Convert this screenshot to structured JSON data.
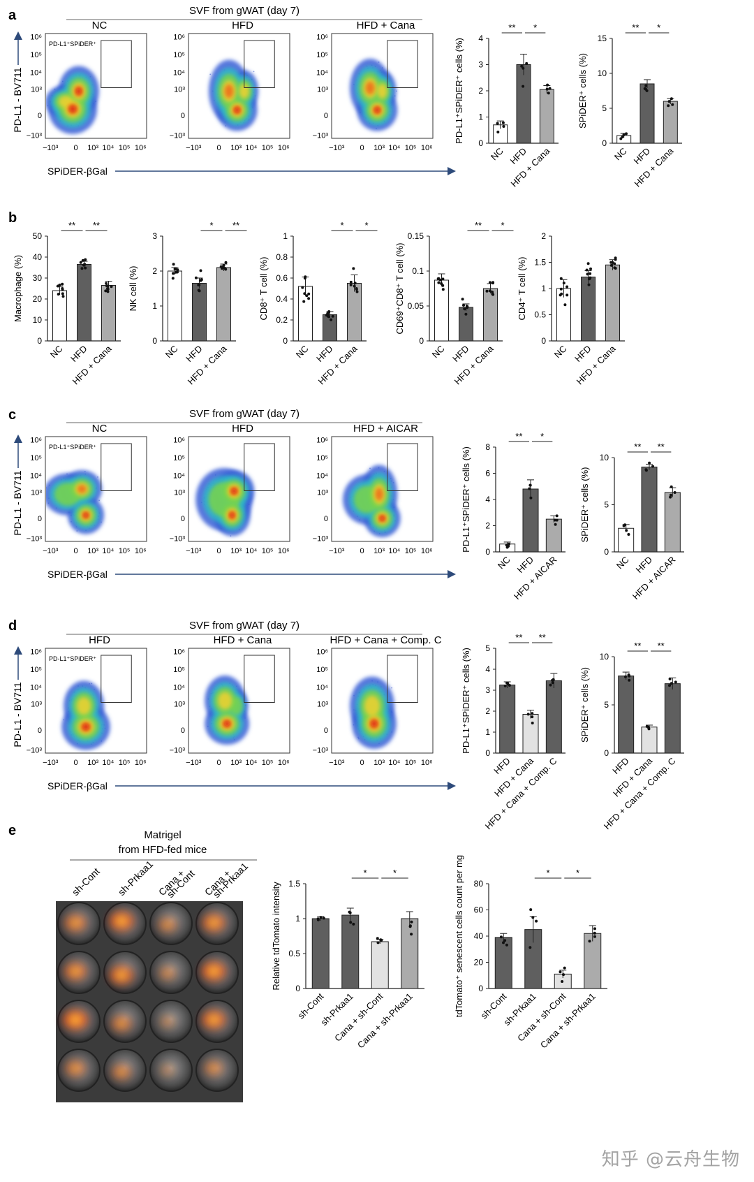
{
  "figure": {
    "panels": {
      "a": {
        "letter": "a",
        "header": "SVF from gWAT (day 7)",
        "groups": [
          "NC",
          "HFD",
          "HFD + Cana"
        ]
      },
      "b": {
        "letter": "b"
      },
      "c": {
        "letter": "c",
        "header": "SVF from gWAT (day 7)",
        "groups": [
          "NC",
          "HFD",
          "HFD + AICAR"
        ]
      },
      "d": {
        "letter": "d",
        "header": "SVF from gWAT (day 7)",
        "groups": [
          "HFD",
          "HFD + Cana",
          "HFD + Cana + Comp. C"
        ]
      },
      "e": {
        "letter": "e",
        "matrigel_line1": "Matrigel",
        "matrigel_line2": "from  HFD-fed mice",
        "wells": [
          "sh-Cont",
          "sh-Prkaa1",
          "Cana + sh-Cont",
          "Cana + sh-Prkaa1"
        ]
      }
    },
    "flow": {
      "y_axis_label": "PD-L1 - BV711",
      "x_axis_label": "SPiDER-βGal",
      "gate_label": "PD-L1⁺SPiDER⁺",
      "y_ticks": [
        "10⁶",
        "10⁵",
        "10⁴",
        "10³",
        "0",
        "−10³"
      ],
      "x_ticks": [
        "−10³",
        "0",
        "10³",
        "10⁴",
        "10⁵",
        "10⁶"
      ]
    },
    "watermark": "知乎 @云舟生物",
    "colors": {
      "nc": "#ffffff",
      "hfd": "#5f5f5f",
      "treat": "#ababab",
      "treat2": "#e2e2e2",
      "axis": "#222222",
      "arrow": "#2d4a7a"
    }
  },
  "chart_data": [
    {
      "id": "a1",
      "type": "bar",
      "ylabel": "PD-L1⁺SPiDER⁺ cells (%)",
      "categories": [
        "NC",
        "HFD",
        "HFD + Cana"
      ],
      "values": [
        0.7,
        3.0,
        2.05
      ],
      "errors": [
        0.15,
        0.4,
        0.15
      ],
      "ylim": [
        0,
        4
      ],
      "yticks": [
        0,
        1,
        2,
        3,
        4
      ],
      "sig": [
        {
          "from": 1,
          "to": 2,
          "label": "**"
        },
        {
          "from": 2,
          "to": 3,
          "label": "*"
        }
      ]
    },
    {
      "id": "a2",
      "type": "bar",
      "ylabel": "SPiDER⁺ cells (%)",
      "categories": [
        "NC",
        "HFD",
        "HFD + Cana"
      ],
      "values": [
        1.1,
        8.5,
        6.0
      ],
      "errors": [
        0.3,
        0.6,
        0.4
      ],
      "ylim": [
        0,
        15
      ],
      "yticks": [
        0,
        5,
        10,
        15
      ],
      "sig": [
        {
          "from": 1,
          "to": 2,
          "label": "**"
        },
        {
          "from": 2,
          "to": 3,
          "label": "*"
        }
      ]
    },
    {
      "id": "b1",
      "type": "bar",
      "ylabel": "Macrophage (%)",
      "categories": [
        "NC",
        "HFD",
        "HFD + Cana"
      ],
      "values": [
        24,
        36.5,
        26.5
      ],
      "errors": [
        2,
        1.5,
        2
      ],
      "ylim": [
        0,
        50
      ],
      "yticks": [
        0,
        10,
        20,
        30,
        40,
        50
      ],
      "sig": [
        {
          "from": 1,
          "to": 2,
          "label": "**"
        },
        {
          "from": 2,
          "to": 3,
          "label": "**"
        }
      ]
    },
    {
      "id": "b2",
      "type": "bar",
      "ylabel": "NK cell (%)",
      "categories": [
        "NC",
        "HFD",
        "HFD + Cana"
      ],
      "values": [
        2.0,
        1.65,
        2.1
      ],
      "errors": [
        0.1,
        0.15,
        0.1
      ],
      "ylim": [
        0,
        3
      ],
      "yticks": [
        0,
        1,
        2,
        3
      ],
      "sig": [
        {
          "from": 2,
          "to": 3,
          "label": "*"
        },
        {
          "from": 3,
          "to": 4,
          "label": "**"
        }
      ]
    },
    {
      "id": "b3",
      "type": "bar",
      "ylabel": "CD8⁺ T cell (%)",
      "categories": [
        "NC",
        "HFD",
        "HFD + Cana"
      ],
      "values": [
        0.52,
        0.25,
        0.55
      ],
      "errors": [
        0.09,
        0.03,
        0.08
      ],
      "ylim": [
        0,
        1.0
      ],
      "yticks": [
        0,
        0.2,
        0.4,
        0.6,
        0.8,
        1.0
      ],
      "sig": [
        {
          "from": 2,
          "to": 3,
          "label": "*"
        },
        {
          "from": 3,
          "to": 4,
          "label": "*"
        }
      ]
    },
    {
      "id": "b4",
      "type": "bar",
      "ylabel": "CD69⁺CD8⁺ T cell (%)",
      "categories": [
        "NC",
        "HFD",
        "HFD + Cana"
      ],
      "values": [
        0.087,
        0.048,
        0.075
      ],
      "errors": [
        0.009,
        0.005,
        0.007
      ],
      "ylim": [
        0,
        0.15
      ],
      "yticks": [
        0,
        0.05,
        0.1,
        0.15
      ],
      "sig": [
        {
          "from": 2,
          "to": 3,
          "label": "**"
        },
        {
          "from": 3,
          "to": 4,
          "label": "*"
        }
      ]
    },
    {
      "id": "b5",
      "type": "bar",
      "ylabel": "CD4⁺ T cell (%)",
      "categories": [
        "NC",
        "HFD",
        "HFD + Cana"
      ],
      "values": [
        1.0,
        1.22,
        1.45
      ],
      "errors": [
        0.17,
        0.12,
        0.1
      ],
      "ylim": [
        0,
        2.0
      ],
      "yticks": [
        0,
        0.5,
        1.0,
        1.5,
        2.0
      ],
      "sig": []
    },
    {
      "id": "c1",
      "type": "bar",
      "ylabel": "PD-L1⁺SPiDER⁺ cells (%)",
      "categories": [
        "NC",
        "HFD",
        "HFD + AICAR"
      ],
      "values": [
        0.6,
        4.8,
        2.5
      ],
      "errors": [
        0.15,
        0.7,
        0.25
      ],
      "ylim": [
        0,
        8
      ],
      "yticks": [
        0,
        2,
        4,
        6,
        8
      ],
      "sig": [
        {
          "from": 1,
          "to": 2,
          "label": "**"
        },
        {
          "from": 2,
          "to": 3,
          "label": "*"
        }
      ]
    },
    {
      "id": "c2",
      "type": "bar",
      "ylabel": "SPiDER⁺ cells (%)",
      "categories": [
        "NC",
        "HFD",
        "HFD + AICAR"
      ],
      "values": [
        2.5,
        9.0,
        6.3
      ],
      "errors": [
        0.4,
        0.3,
        0.5
      ],
      "ylim": [
        0,
        10
      ],
      "yticks": [
        0,
        5,
        10
      ],
      "sig": [
        {
          "from": 1,
          "to": 2,
          "label": "**"
        },
        {
          "from": 2,
          "to": 3,
          "label": "**"
        }
      ]
    },
    {
      "id": "d1",
      "type": "bar",
      "ylabel": "PD-L1⁺SPiDER⁺ cells (%)",
      "categories": [
        "HFD",
        "HFD + Cana",
        "HFD + Cana + Comp. C"
      ],
      "values": [
        3.25,
        1.85,
        3.45
      ],
      "errors": [
        0.15,
        0.2,
        0.35
      ],
      "ylim": [
        0,
        5
      ],
      "yticks": [
        0,
        1,
        2,
        3,
        4,
        5
      ],
      "sig": [
        {
          "from": 1,
          "to": 2,
          "label": "**"
        },
        {
          "from": 2,
          "to": 3,
          "label": "**"
        }
      ]
    },
    {
      "id": "d2",
      "type": "bar",
      "ylabel": "SPiDER⁺ cells (%)",
      "categories": [
        "HFD",
        "HFD + Cana",
        "HFD + Cana + Comp. C"
      ],
      "values": [
        8.0,
        2.7,
        7.2
      ],
      "errors": [
        0.4,
        0.2,
        0.6
      ],
      "ylim": [
        0,
        10
      ],
      "yticks": [
        0,
        5,
        10
      ],
      "sig": [
        {
          "from": 1,
          "to": 2,
          "label": "**"
        },
        {
          "from": 2,
          "to": 3,
          "label": "**"
        }
      ]
    },
    {
      "id": "e1",
      "type": "bar",
      "ylabel": "Relative tdTomato intensity",
      "categories": [
        "sh-Cont",
        "sh-Prkaa1",
        "Cana + sh-Cont",
        "Cana + sh-Prkaa1"
      ],
      "values": [
        1.0,
        1.05,
        0.67,
        1.0
      ],
      "errors": [
        0.03,
        0.1,
        0.03,
        0.1
      ],
      "ylim": [
        0,
        1.5
      ],
      "yticks": [
        0,
        0.5,
        1.0,
        1.5
      ],
      "sig": [
        {
          "from": 2,
          "to": 3,
          "label": "*"
        },
        {
          "from": 3,
          "to": 4,
          "label": "*"
        }
      ]
    },
    {
      "id": "e2",
      "type": "bar",
      "ylabel": "tdTomato⁺ senescent cells count per mg",
      "categories": [
        "sh-Cont",
        "sh-Prkaa1",
        "Cana + sh-Cont",
        "Cana + sh-Prkaa1"
      ],
      "values": [
        39,
        45,
        11,
        42
      ],
      "errors": [
        3,
        10,
        3,
        6
      ],
      "ylim": [
        0,
        80
      ],
      "yticks": [
        0,
        20,
        40,
        60,
        80
      ],
      "sig": [
        {
          "from": 2,
          "to": 3,
          "label": "*"
        },
        {
          "from": 3,
          "to": 4,
          "label": "*"
        }
      ]
    }
  ]
}
